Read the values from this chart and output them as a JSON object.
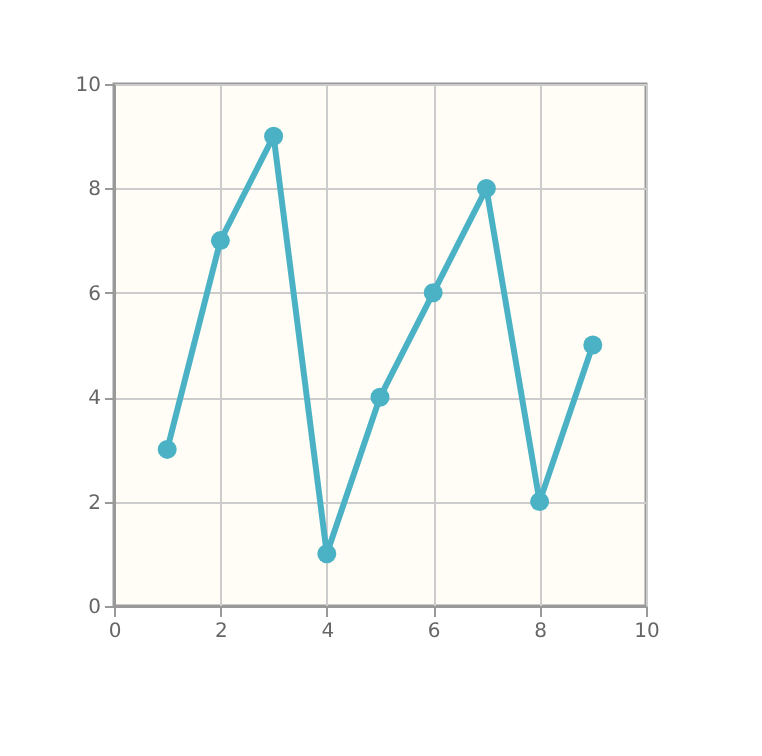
{
  "chart_data": {
    "type": "line",
    "x": [
      1,
      2,
      3,
      4,
      5,
      6,
      7,
      8,
      9
    ],
    "series": [
      {
        "color": "#4bb2c5",
        "values": [
          3,
          7,
          9,
          1,
          4,
          6,
          8,
          2,
          5
        ]
      }
    ],
    "xlim": [
      0,
      10
    ],
    "xticks": [
      0,
      2,
      4,
      6,
      8,
      10
    ],
    "ylim": [
      0,
      10
    ],
    "yticks": [
      0,
      2,
      4,
      6,
      8,
      10
    ],
    "grid": true,
    "marker": "circle",
    "line_style": "solid"
  }
}
